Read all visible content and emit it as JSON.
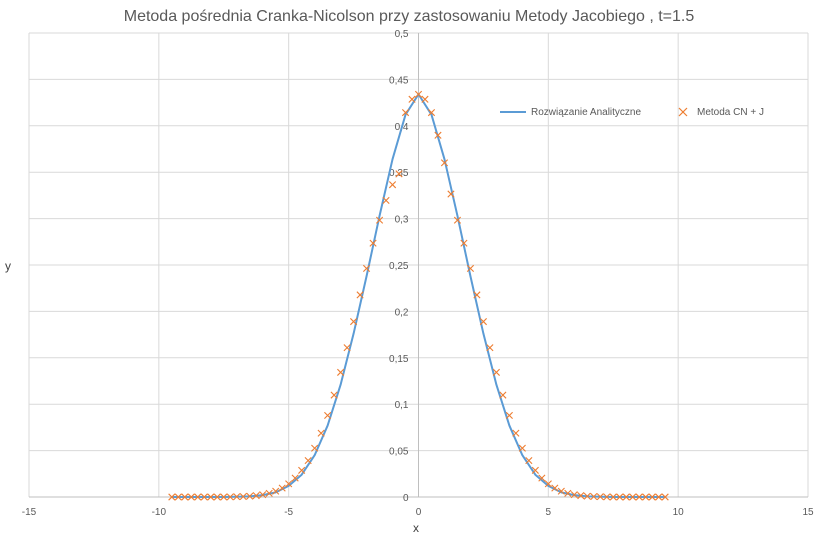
{
  "chart_data": {
    "type": "line",
    "title": "Metoda pośrednia Cranka-Nicolson przy zastosowaniu Metody Jacobiego  , t=1.5",
    "xlabel": "x",
    "ylabel": "y",
    "xlim": [
      -15,
      15
    ],
    "ylim": [
      0,
      0.5
    ],
    "xticks": [
      -15,
      -10,
      -5,
      0,
      5,
      10,
      15
    ],
    "xtick_labels": [
      "-15",
      "-10",
      "-5",
      "0",
      "5",
      "10",
      "15"
    ],
    "yticks": [
      0,
      0.05,
      0.1,
      0.15,
      0.2,
      0.25,
      0.3,
      0.35,
      0.4,
      0.45,
      0.5
    ],
    "ytick_labels": [
      "0",
      "0,05",
      "0,1",
      "0,15",
      "0,2",
      "0,25",
      "0,3",
      "0,35",
      "0,4",
      "0,45",
      "0,5"
    ],
    "grid": true,
    "legend_position": "top-right",
    "series": [
      {
        "name": "Rozwiązanie Analityczne",
        "kind": "line",
        "color": "#5B9BD5",
        "x": [
          -9.5,
          -9,
          -8.5,
          -8,
          -7.5,
          -7,
          -6.5,
          -6,
          -5.5,
          -5,
          -4.5,
          -4,
          -3.5,
          -3,
          -2.5,
          -2,
          -1.5,
          -1,
          -0.5,
          0,
          0.5,
          1,
          1.5,
          2,
          2.5,
          3,
          3.5,
          4,
          4.5,
          5,
          5.5,
          6,
          6.5,
          7,
          7.5,
          8,
          8.5,
          9,
          9.5
        ],
        "y": [
          0,
          0,
          0,
          0,
          0,
          0.0002,
          0.0007,
          0.002,
          0.005,
          0.012,
          0.024,
          0.045,
          0.077,
          0.121,
          0.176,
          0.238,
          0.303,
          0.364,
          0.412,
          0.434,
          0.412,
          0.364,
          0.303,
          0.238,
          0.176,
          0.121,
          0.077,
          0.045,
          0.024,
          0.012,
          0.005,
          0.002,
          0.0007,
          0.0002,
          0,
          0,
          0,
          0,
          0
        ]
      },
      {
        "name": "Metoda CN + J",
        "kind": "scatter",
        "marker": "x",
        "color": "#ED7D31",
        "x": [
          -9.5,
          -9.25,
          -9,
          -8.75,
          -8.5,
          -8.25,
          -8,
          -7.75,
          -7.5,
          -7.25,
          -7,
          -6.75,
          -6.5,
          -6.25,
          -6,
          -5.75,
          -5.5,
          -5.25,
          -5,
          -4.75,
          -4.5,
          -4.25,
          -4,
          -3.75,
          -3.5,
          -3.25,
          -3,
          -2.75,
          -2.5,
          -2.25,
          -2,
          -1.75,
          -1.5,
          -1.25,
          -1,
          -0.75,
          -0.5,
          -0.25,
          0,
          0.25,
          0.5,
          0.75,
          1,
          1.25,
          1.5,
          1.75,
          2,
          2.25,
          2.5,
          2.75,
          3,
          3.25,
          3.5,
          3.75,
          4,
          4.25,
          4.5,
          4.75,
          5,
          5.25,
          5.5,
          5.75,
          6,
          6.25,
          6.5,
          6.75,
          7,
          7.25,
          7.5,
          7.75,
          8,
          8.25,
          8.5,
          8.75,
          9,
          9.25,
          9.5
        ],
        "y": [
          0,
          0,
          0,
          0,
          0,
          0,
          0,
          0,
          0,
          0.0001,
          0.0003,
          0.0005,
          0.0009,
          0.0015,
          0.0025,
          0.004,
          0.0063,
          0.0096,
          0.0142,
          0.0204,
          0.0287,
          0.0393,
          0.0526,
          0.0688,
          0.0879,
          0.1098,
          0.1343,
          0.1609,
          0.189,
          0.2178,
          0.2463,
          0.2735,
          0.2983,
          0.3196,
          0.3365,
          0.3482,
          0.4142,
          0.4286,
          0.4339,
          0.4286,
          0.4142,
          0.3898,
          0.3601,
          0.3265,
          0.2983,
          0.2735,
          0.2463,
          0.2178,
          0.189,
          0.1609,
          0.1343,
          0.1098,
          0.0879,
          0.0688,
          0.0526,
          0.0393,
          0.0287,
          0.0204,
          0.0142,
          0.0096,
          0.0063,
          0.004,
          0.0025,
          0.0015,
          0.0009,
          0.0005,
          0.0003,
          0.0001,
          0,
          0,
          0,
          0,
          0,
          0,
          0,
          0,
          0
        ]
      }
    ]
  }
}
